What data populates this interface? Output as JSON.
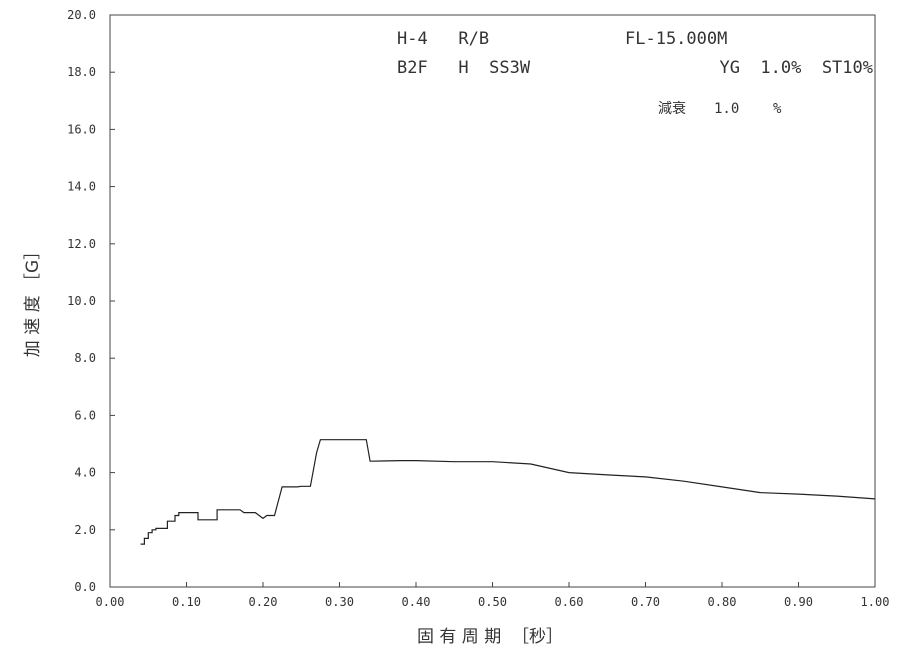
{
  "chart_data": {
    "type": "line",
    "header": {
      "line1_left": "H-4   R/B",
      "line1_right": "FL-15.000M",
      "line2_left": "B2F   H  SS3W",
      "line2_right": "YG  1.0%  ST10%",
      "damping_label": "減衰",
      "damping_value": "1.0",
      "damping_unit": "%"
    },
    "xlabel": "固 有 周 期  ［秒］",
    "ylabel": "加 速 度 ［G］",
    "xlim": [
      0.0,
      1.0
    ],
    "ylim": [
      0.0,
      20.0
    ],
    "x_ticks": [
      "0.00",
      "0.10",
      "0.20",
      "0.30",
      "0.40",
      "0.50",
      "0.60",
      "0.70",
      "0.80",
      "0.90",
      "1.00"
    ],
    "y_ticks": [
      "0.0",
      "2.0",
      "4.0",
      "6.0",
      "8.0",
      "10.0",
      "12.0",
      "14.0",
      "16.0",
      "18.0",
      "20.0"
    ],
    "grid": false,
    "series": [
      {
        "color": "#222222",
        "points": [
          [
            0.04,
            1.5
          ],
          [
            0.045,
            1.5
          ],
          [
            0.045,
            1.7
          ],
          [
            0.05,
            1.7
          ],
          [
            0.05,
            1.9
          ],
          [
            0.055,
            1.9
          ],
          [
            0.055,
            2.0
          ],
          [
            0.06,
            2.0
          ],
          [
            0.06,
            2.05
          ],
          [
            0.075,
            2.05
          ],
          [
            0.075,
            2.3
          ],
          [
            0.085,
            2.3
          ],
          [
            0.085,
            2.5
          ],
          [
            0.09,
            2.5
          ],
          [
            0.09,
            2.6
          ],
          [
            0.115,
            2.6
          ],
          [
            0.115,
            2.35
          ],
          [
            0.14,
            2.35
          ],
          [
            0.14,
            2.7
          ],
          [
            0.17,
            2.7
          ],
          [
            0.175,
            2.6
          ],
          [
            0.19,
            2.6
          ],
          [
            0.2,
            2.4
          ],
          [
            0.205,
            2.5
          ],
          [
            0.215,
            2.5
          ],
          [
            0.225,
            3.5
          ],
          [
            0.245,
            3.5
          ],
          [
            0.25,
            3.52
          ],
          [
            0.262,
            3.52
          ],
          [
            0.27,
            4.7
          ],
          [
            0.275,
            5.15
          ],
          [
            0.335,
            5.15
          ],
          [
            0.34,
            4.4
          ],
          [
            0.38,
            4.42
          ],
          [
            0.4,
            4.42
          ],
          [
            0.45,
            4.38
          ],
          [
            0.5,
            4.38
          ],
          [
            0.55,
            4.3
          ],
          [
            0.6,
            4.0
          ],
          [
            0.65,
            3.92
          ],
          [
            0.7,
            3.85
          ],
          [
            0.75,
            3.7
          ],
          [
            0.8,
            3.5
          ],
          [
            0.85,
            3.3
          ],
          [
            0.9,
            3.25
          ],
          [
            0.95,
            3.18
          ],
          [
            1.0,
            3.08
          ]
        ]
      }
    ]
  }
}
